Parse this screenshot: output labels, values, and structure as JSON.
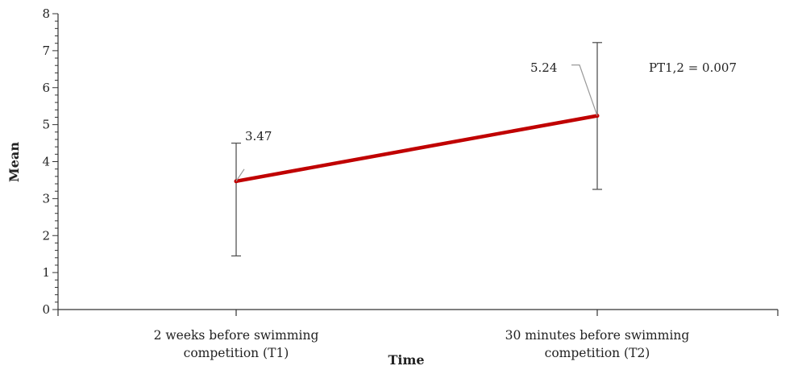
{
  "chart_data": {
    "type": "line",
    "title": "",
    "xlabel": "Time",
    "ylabel": "Mean",
    "ylim": [
      0,
      8
    ],
    "yticks": [
      0,
      1,
      2,
      3,
      4,
      5,
      6,
      7,
      8
    ],
    "y_minor_step": 0.2,
    "categories": [
      [
        "2 weeks before swimming",
        "competition (T1)"
      ],
      [
        "30 minutes before swimming",
        "competition (T2)"
      ]
    ],
    "series": [
      {
        "values": [
          3.47,
          5.24
        ],
        "error_low": [
          1.45,
          3.25
        ],
        "error_high": [
          4.5,
          7.22
        ],
        "data_labels": [
          "3.47",
          "5.24"
        ]
      }
    ],
    "annotation": "PT1,2 = 0.007",
    "grid": false,
    "legend": "none",
    "colors": {
      "line": "#c00000",
      "errorbar": "#555555",
      "axis": "#333333",
      "leader": "#999999"
    }
  }
}
